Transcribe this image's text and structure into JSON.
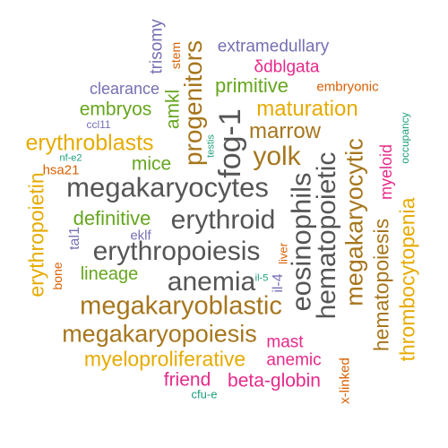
{
  "colors": {
    "teal": "#1b9e77",
    "orange": "#d95f02",
    "purple": "#7570b3",
    "magenta": "#e7298a",
    "green": "#66a61e",
    "gold": "#e6ab02",
    "brown": "#a6761d",
    "gray": "#555555"
  },
  "words": [
    "trisomy",
    "stem",
    "amkl",
    "progenitors",
    "extramedullary",
    "δdblgata",
    "clearance",
    "primitive",
    "embryonic",
    "embryos",
    "maturation",
    "ccl11",
    "testis",
    "fog-1",
    "occupancy",
    "marrow",
    "nf-e2",
    "erythroblasts",
    "mice",
    "yolk",
    "hsa21",
    "erythropoietin",
    "megakaryocytes",
    "eosinophils",
    "hematopoietic",
    "megakaryocytic",
    "myeloid",
    "hematopoiesis",
    "thrombocytopenia",
    "definitive",
    "erythroid",
    "tal1",
    "eklf",
    "erythropoiesis",
    "liver",
    "lineage",
    "bone",
    "il-5",
    "il-4",
    "anemia",
    "megakaryoblastic",
    "megakaryopoiesis",
    "mast",
    "myeloproliferative",
    "anemic",
    "x-linked",
    "friend",
    "beta-globin",
    "cfu-e"
  ]
}
